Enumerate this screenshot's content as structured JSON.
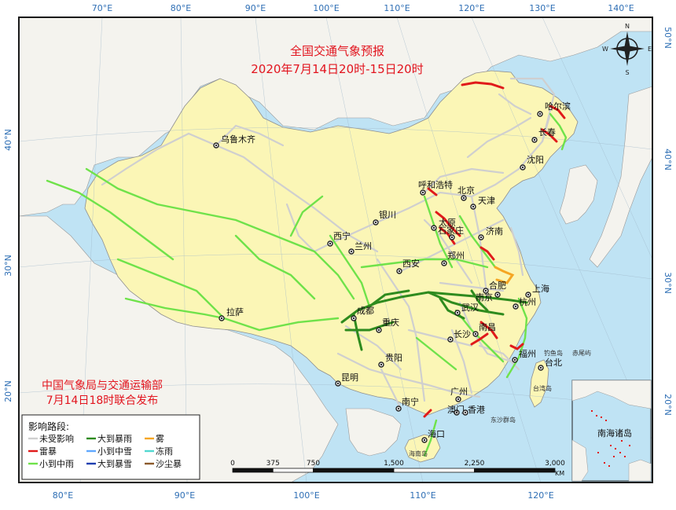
{
  "title": {
    "line1": "全国交通气象预报",
    "line2": "2020年7月14日20时-15日20时"
  },
  "colors": {
    "sea": "#bfe3f4",
    "land_other": "#f4f3ee",
    "china": "#fbf6b6",
    "frame": "#1a1a1a",
    "tick": "#2f6fb5",
    "title": "#e2141e",
    "road_unaffected": "#cfcfcf",
    "road_thunder": "#e01a1a",
    "road_light_rain": "#6fe24a",
    "road_heavy_rain": "#2e8b1e",
    "road_fog": "#f5a623",
    "road_light_snow": "#5fa8ff",
    "road_heavy_snow": "#1f3fb0",
    "road_freezing_rain": "#52d8d0",
    "road_dust": "#8b5a2b"
  },
  "top_axis": [
    "70°E",
    "80°E",
    "90°E",
    "100°E",
    "110°E",
    "120°E",
    "130°E",
    "140°E"
  ],
  "bottom_axis": [
    "80°E",
    "90°E",
    "100°E",
    "110°E",
    "120°E"
  ],
  "left_axis": [
    "40°N",
    "30°N",
    "20°N"
  ],
  "right_axis": [
    "50°N",
    "40°N",
    "30°N",
    "20°N"
  ],
  "compass": {
    "n": "N",
    "s": "S",
    "e": "E",
    "w": "W"
  },
  "cities": [
    {
      "name": "哈尔滨"
    },
    {
      "name": "长春"
    },
    {
      "name": "沈阳"
    },
    {
      "name": "乌鲁木齐"
    },
    {
      "name": "呼和浩特"
    },
    {
      "name": "北京"
    },
    {
      "name": "天津"
    },
    {
      "name": "太原"
    },
    {
      "name": "石家庄"
    },
    {
      "name": "济南"
    },
    {
      "name": "银川"
    },
    {
      "name": "西宁"
    },
    {
      "name": "兰州"
    },
    {
      "name": "郑州"
    },
    {
      "name": "西安"
    },
    {
      "name": "合肥"
    },
    {
      "name": "南京"
    },
    {
      "name": "上海"
    },
    {
      "name": "杭州"
    },
    {
      "name": "武汉"
    },
    {
      "name": "成都"
    },
    {
      "name": "重庆"
    },
    {
      "name": "拉萨"
    },
    {
      "name": "长沙"
    },
    {
      "name": "南昌"
    },
    {
      "name": "福州"
    },
    {
      "name": "台北"
    },
    {
      "name": "贵阳"
    },
    {
      "name": "昆明"
    },
    {
      "name": "南宁"
    },
    {
      "name": "广州"
    },
    {
      "name": "澳门"
    },
    {
      "name": "香港"
    },
    {
      "name": "海口"
    }
  ],
  "island_labels": {
    "diaoyu": "钓鱼岛",
    "chiwei": "赤尾屿",
    "taiwan": "台湾岛",
    "dongsha": "东沙群岛",
    "hainan": "海南岛"
  },
  "publisher": {
    "line1": "中国气象局与交通运输部",
    "line2": "7月14日18时联合发布"
  },
  "legend": {
    "title": "影响路段:",
    "items": [
      {
        "label": "未受影响",
        "color": "#cfcfcf"
      },
      {
        "label": "大到暴雨",
        "color": "#2e8b1e"
      },
      {
        "label": "雾",
        "color": "#f5a623"
      },
      {
        "label": "雷暴",
        "color": "#e01a1a"
      },
      {
        "label": "小到中雪",
        "color": "#5fa8ff"
      },
      {
        "label": "冻雨",
        "color": "#52d8d0"
      },
      {
        "label": "小到中雨",
        "color": "#6fe24a"
      },
      {
        "label": "大到暴雪",
        "color": "#1f3fb0"
      },
      {
        "label": "沙尘暴",
        "color": "#8b5a2b"
      }
    ]
  },
  "scale": {
    "ticks": [
      "0",
      "375",
      "750",
      "1,500",
      "2,250",
      "3,000"
    ],
    "values": [
      0,
      375,
      750,
      1500,
      2250,
      3000
    ],
    "unit": "KM"
  },
  "inset": {
    "label": "南海诸岛"
  }
}
